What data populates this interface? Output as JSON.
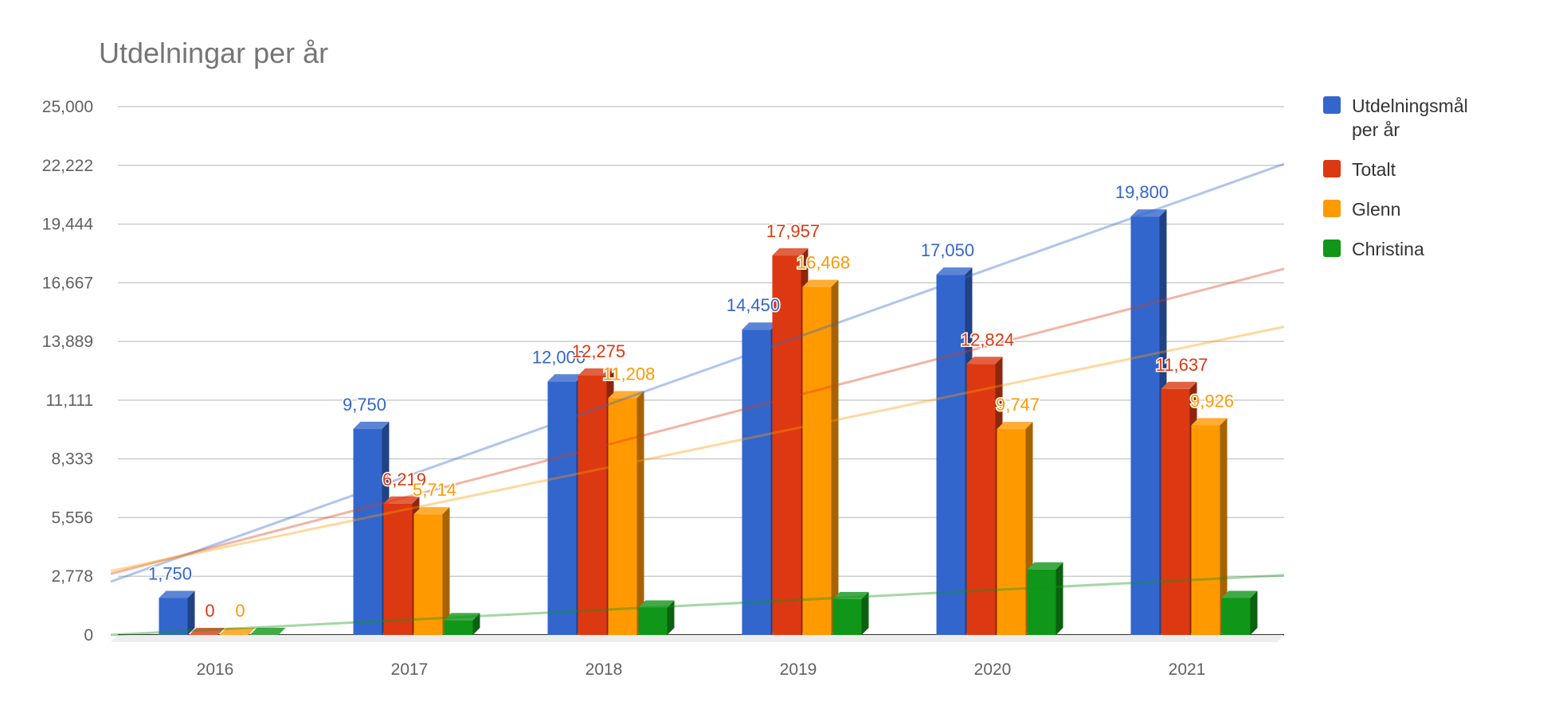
{
  "chart_data": {
    "type": "bar",
    "title": "Utdelningar per år",
    "xlabel": "",
    "ylabel": "",
    "categories": [
      "2016",
      "2017",
      "2018",
      "2019",
      "2020",
      "2021"
    ],
    "ylim": [
      0,
      25000
    ],
    "yticks": [
      0,
      2778,
      5556,
      8333,
      11111,
      13889,
      16667,
      19444,
      22222,
      25000
    ],
    "ytick_labels": [
      "0",
      "2,778",
      "5,556",
      "8,333",
      "11,111",
      "13,889",
      "16,667",
      "19,444",
      "22,222",
      "25,000"
    ],
    "grid": true,
    "three_d": true,
    "legend_position": "right",
    "trendlines": true,
    "series": [
      {
        "name": "Utdelningsmål per år",
        "legend_lines": [
          "Utdelningsmål",
          "per år"
        ],
        "color": "#3366cc",
        "values": [
          1750,
          9750,
          12000,
          14450,
          17050,
          19800
        ],
        "labels": [
          "1,750",
          "9,750",
          "12,000",
          "14,450",
          "17,050",
          "19,800"
        ]
      },
      {
        "name": "Totalt",
        "legend_lines": [
          "Totalt"
        ],
        "color": "#dc3912",
        "values": [
          0,
          6219,
          12275,
          17957,
          12824,
          11637
        ],
        "labels": [
          "0",
          "6,219",
          "12,275",
          "17,957",
          "12,824",
          "11,637"
        ]
      },
      {
        "name": "Glenn",
        "legend_lines": [
          "Glenn"
        ],
        "color": "#ff9900",
        "values": [
          0,
          5714,
          11208,
          16468,
          9747,
          9926
        ],
        "labels": [
          "0",
          "5,714",
          "11,208",
          "16,468",
          "9,747",
          "9,926"
        ]
      },
      {
        "name": "Christina",
        "legend_lines": [
          "Christina"
        ],
        "color": "#109618",
        "values": [
          0,
          700,
          1300,
          1700,
          3100,
          1750
        ],
        "labels": [
          "",
          "",
          "",
          "",
          "",
          ""
        ]
      }
    ]
  }
}
